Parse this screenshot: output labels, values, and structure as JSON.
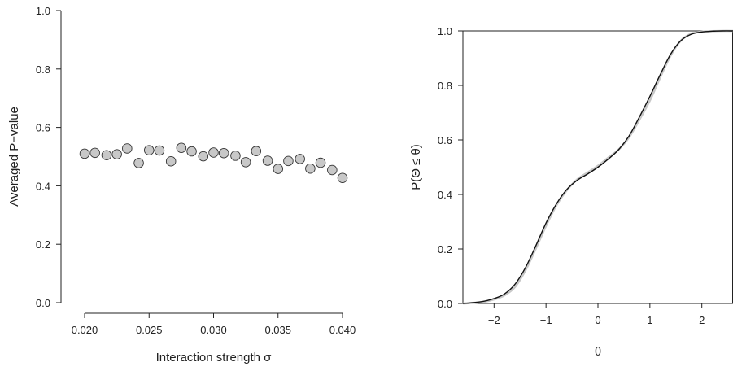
{
  "chart_data": [
    {
      "type": "scatter",
      "title": "",
      "xlabel": "Interaction strength σ",
      "ylabel": "Averaged P−value",
      "xlim": [
        0.02,
        0.04
      ],
      "ylim": [
        0.0,
        1.0
      ],
      "xticks": [
        "0.020",
        "0.025",
        "0.030",
        "0.035",
        "0.040"
      ],
      "yticks": [
        "0.0",
        "0.2",
        "0.4",
        "0.6",
        "0.8",
        "1.0"
      ],
      "grid": false,
      "series": [
        {
          "x": [
            0.02,
            0.0208,
            0.0217,
            0.0225,
            0.0233,
            0.0242,
            0.025,
            0.0258,
            0.0267,
            0.0275,
            0.0283,
            0.0292,
            0.03,
            0.0308,
            0.0317,
            0.0325,
            0.0333,
            0.0342,
            0.035,
            0.0358,
            0.0367,
            0.0375,
            0.0383,
            0.0392,
            0.04
          ],
          "y": [
            0.51,
            0.513,
            0.505,
            0.508,
            0.528,
            0.478,
            0.522,
            0.521,
            0.484,
            0.53,
            0.518,
            0.501,
            0.514,
            0.512,
            0.503,
            0.481,
            0.519,
            0.486,
            0.458,
            0.485,
            0.492,
            0.459,
            0.479,
            0.454,
            0.427
          ],
          "color": "#c8c8c8"
        }
      ]
    },
    {
      "type": "line",
      "title": "",
      "xlabel": "θ",
      "ylabel": "P(Θ ≤ θ)",
      "xlim": [
        -2.6,
        2.6
      ],
      "ylim": [
        0.0,
        1.0
      ],
      "xticks": [
        "−2",
        "−1",
        "0",
        "1",
        "2"
      ],
      "yticks": [
        "0.0",
        "0.2",
        "0.4",
        "0.6",
        "0.8",
        "1.0"
      ],
      "grid": false,
      "series": [
        {
          "color": "#c8c8c8",
          "x": [
            -2.6,
            -2.4,
            -2.2,
            -2.0,
            -1.8,
            -1.6,
            -1.4,
            -1.2,
            -1.0,
            -0.8,
            -0.6,
            -0.4,
            -0.2,
            0.0,
            0.2,
            0.4,
            0.6,
            0.8,
            1.0,
            1.2,
            1.4,
            1.6,
            1.8,
            2.0,
            2.2,
            2.4,
            2.6
          ],
          "y": [
            0.0,
            0.002,
            0.006,
            0.015,
            0.03,
            0.06,
            0.12,
            0.2,
            0.285,
            0.36,
            0.415,
            0.455,
            0.48,
            0.505,
            0.535,
            0.565,
            0.61,
            0.675,
            0.745,
            0.83,
            0.91,
            0.965,
            0.99,
            0.997,
            0.999,
            1.0,
            1.0
          ]
        },
        {
          "color": "#111111",
          "x": [
            -2.6,
            -2.4,
            -2.2,
            -2.0,
            -1.8,
            -1.6,
            -1.4,
            -1.2,
            -1.0,
            -0.8,
            -0.6,
            -0.4,
            -0.2,
            0.0,
            0.2,
            0.4,
            0.6,
            0.8,
            1.0,
            1.2,
            1.4,
            1.6,
            1.8,
            2.0,
            2.2,
            2.4,
            2.6
          ],
          "y": [
            0.0,
            0.003,
            0.008,
            0.018,
            0.035,
            0.07,
            0.13,
            0.21,
            0.295,
            0.365,
            0.418,
            0.452,
            0.475,
            0.5,
            0.53,
            0.565,
            0.615,
            0.685,
            0.76,
            0.84,
            0.915,
            0.965,
            0.988,
            0.996,
            0.999,
            1.0,
            1.0
          ]
        }
      ]
    }
  ]
}
